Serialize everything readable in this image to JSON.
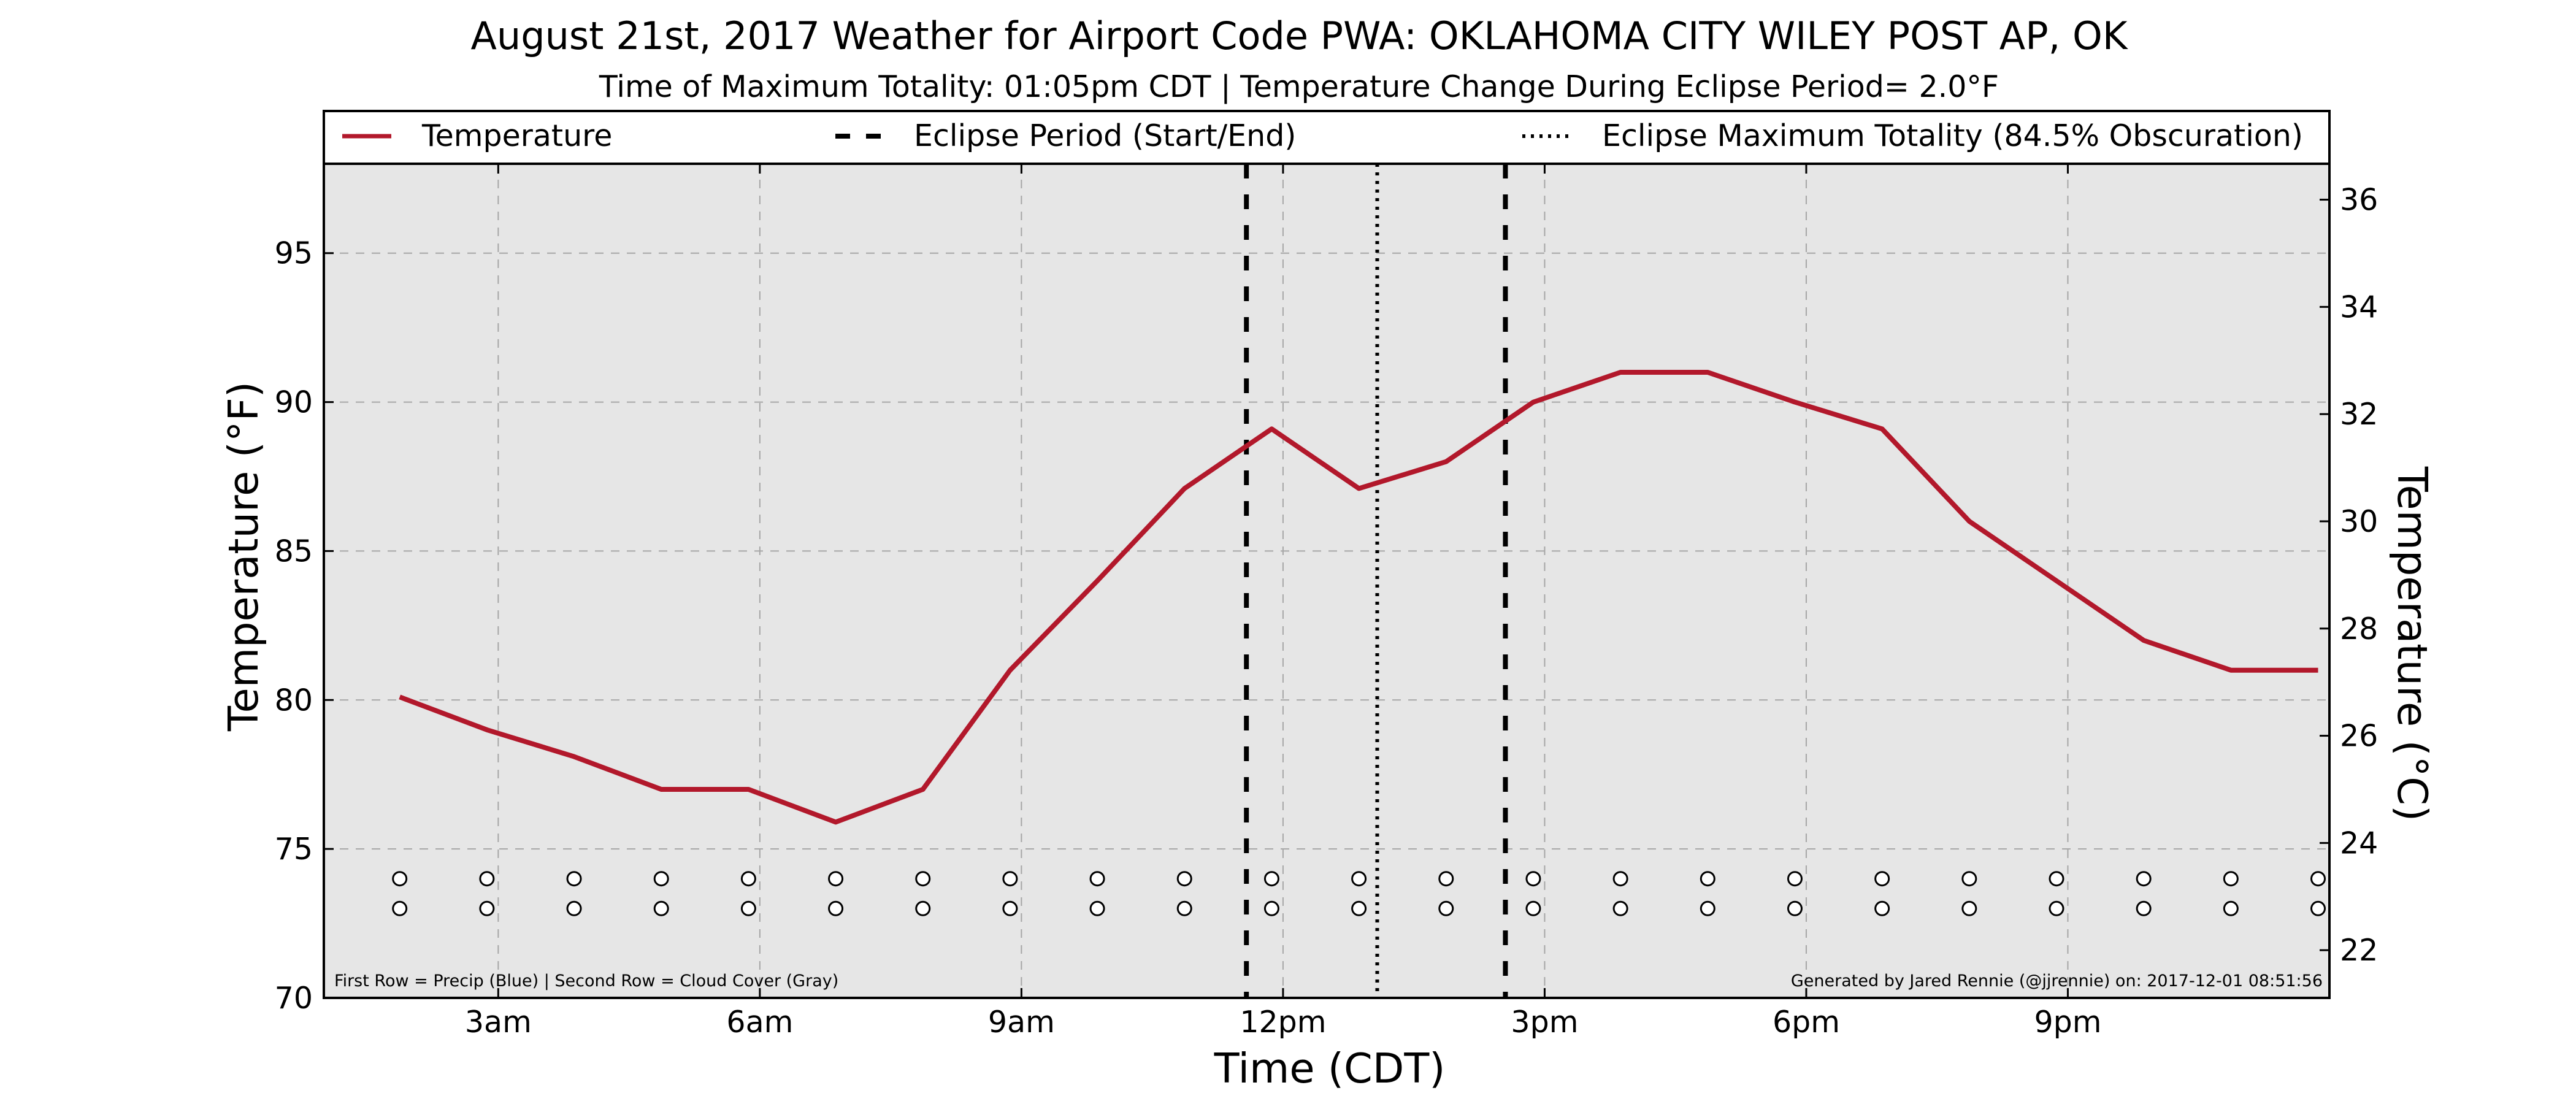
{
  "chart_data": {
    "type": "line",
    "title": "August 21st, 2017 Weather for Airport Code PWA: OKLAHOMA CITY WILEY POST AP, OK",
    "subtitle": "Time of Maximum Totality: 01:05pm CDT | Temperature Change During Eclipse Period= 2.0°F",
    "xlabel": "Time (CDT)",
    "ylabel_left": "Temperature (°F)",
    "ylabel_right": "Temperature (°C)",
    "xlim": [
      1,
      24
    ],
    "ylim_left": [
      70,
      98
    ],
    "ylim_right": [
      21.11,
      36.67
    ],
    "x_ticks": [
      {
        "x": 3,
        "label": "3am"
      },
      {
        "x": 6,
        "label": "6am"
      },
      {
        "x": 9,
        "label": "9am"
      },
      {
        "x": 12,
        "label": "12pm"
      },
      {
        "x": 15,
        "label": "3pm"
      },
      {
        "x": 18,
        "label": "6pm"
      },
      {
        "x": 21,
        "label": "9pm"
      }
    ],
    "y_ticks_left": [
      70,
      75,
      80,
      85,
      90,
      95
    ],
    "y_ticks_right": [
      22,
      24,
      26,
      28,
      30,
      32,
      34,
      36
    ],
    "grid": true,
    "legend_position": "top",
    "legend": [
      {
        "label": "Temperature",
        "style": "solid"
      },
      {
        "label": "Eclipse Period (Start/End)",
        "style": "dashed"
      },
      {
        "label": "Eclipse Maximum Totality (84.5% Obscuration)",
        "style": "dotted"
      }
    ],
    "series": [
      {
        "name": "Temperature",
        "color": "#b2182b",
        "x": [
          1.87,
          2.87,
          3.87,
          4.87,
          5.87,
          6.87,
          7.87,
          8.87,
          9.87,
          10.87,
          11.87,
          12.87,
          13.87,
          14.87,
          15.87,
          16.87,
          17.87,
          18.87,
          19.87,
          20.87,
          21.87,
          22.87,
          23.87
        ],
        "y": [
          80.1,
          79.0,
          78.1,
          77.0,
          77.0,
          75.9,
          77.0,
          81.0,
          84.0,
          87.1,
          89.1,
          87.1,
          88.0,
          90.0,
          91.0,
          91.0,
          90.0,
          89.1,
          86.0,
          84.0,
          82.0,
          81.0,
          81.0
        ]
      }
    ],
    "eclipse_period": {
      "start": 11.58,
      "end": 14.55,
      "style": "dashed"
    },
    "eclipse_max": {
      "x": 13.08,
      "style": "dotted"
    },
    "markers": {
      "x": [
        1.87,
        2.87,
        3.87,
        4.87,
        5.87,
        6.87,
        7.87,
        8.87,
        9.87,
        10.87,
        11.87,
        12.87,
        13.87,
        14.87,
        15.87,
        16.87,
        17.87,
        18.87,
        19.87,
        20.87,
        21.87,
        22.87,
        23.87
      ],
      "row1_y": 74,
      "row2_y": 73
    },
    "annotations": {
      "rows_note": "First Row = Precip (Blue) | Second Row = Cloud Cover (Gray)",
      "credit": "Generated by Jared Rennie (@jjrennie) on: 2017-12-01 08:51:56"
    }
  }
}
